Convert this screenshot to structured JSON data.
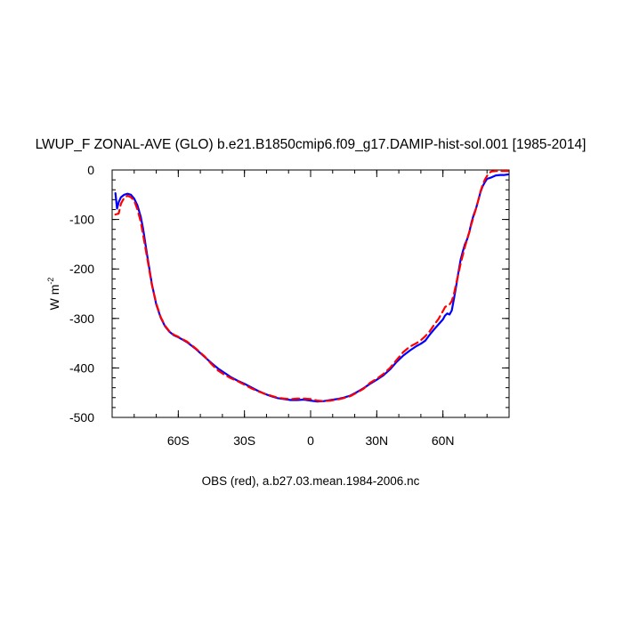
{
  "chart_data": {
    "type": "line",
    "title": "LWUP_F ZONAL-AVE (GLO) b.e21.B1850cmip6.f09_g17.DAMIP-hist-sol.001 [1985-2014]",
    "xlabel": "",
    "ylabel": "W m",
    "ylabel_superscript": "-2",
    "caption": "OBS (red), a.b27.03.mean.1984-2006.nc",
    "xlim": [
      -90,
      90
    ],
    "ylim": [
      -500,
      0
    ],
    "x_ticks": [
      {
        "value": -60,
        "label": "60S"
      },
      {
        "value": -30,
        "label": "30S"
      },
      {
        "value": 0,
        "label": "0"
      },
      {
        "value": 30,
        "label": "30N"
      },
      {
        "value": 60,
        "label": "60N"
      }
    ],
    "y_ticks": [
      {
        "value": 0,
        "label": "0"
      },
      {
        "value": -100,
        "label": "-100"
      },
      {
        "value": -200,
        "label": "-200"
      },
      {
        "value": -300,
        "label": "-300"
      },
      {
        "value": -400,
        "label": "-400"
      },
      {
        "value": -500,
        "label": "-500"
      }
    ],
    "grid": false,
    "series": [
      {
        "color": "#0000ff",
        "dash": "solid",
        "x": [
          -88.5,
          -87.8,
          -87,
          -86,
          -84.5,
          -83,
          -81.5,
          -80,
          -78.5,
          -77,
          -76,
          -74,
          -72,
          -70,
          -68,
          -66,
          -64,
          -62,
          -60,
          -58,
          -56,
          -54,
          -52,
          -50,
          -48,
          -45,
          -42,
          -39,
          -36,
          -33,
          -30,
          -27,
          -24,
          -21,
          -18,
          -15,
          -12,
          -9,
          -6,
          -3,
          0,
          3,
          6,
          9,
          12,
          15,
          18,
          21,
          24,
          27,
          30,
          33,
          36,
          39,
          42,
          45,
          48,
          50,
          52,
          54,
          56,
          58,
          60,
          61,
          62,
          63,
          64,
          65,
          66,
          67,
          68,
          69,
          70,
          71,
          72,
          73,
          74,
          75,
          76,
          77,
          78,
          79,
          80,
          82,
          84,
          86,
          88,
          89.5
        ],
        "y": [
          -47,
          -78,
          -65,
          -55,
          -50,
          -48,
          -50,
          -58,
          -72,
          -95,
          -118,
          -175,
          -230,
          -272,
          -298,
          -316,
          -327,
          -334,
          -338,
          -343,
          -348,
          -355,
          -362,
          -370,
          -378,
          -390,
          -401,
          -410,
          -419,
          -426,
          -432,
          -439,
          -446,
          -452,
          -457,
          -461,
          -463,
          -465,
          -465,
          -464,
          -466,
          -468,
          -467,
          -465,
          -463,
          -460,
          -456,
          -449,
          -441,
          -432,
          -424,
          -415,
          -403,
          -388,
          -375,
          -365,
          -356,
          -351,
          -345,
          -333,
          -322,
          -312,
          -302,
          -294,
          -290,
          -292,
          -284,
          -260,
          -235,
          -208,
          -182,
          -165,
          -150,
          -140,
          -125,
          -105,
          -90,
          -78,
          -62,
          -45,
          -33,
          -25,
          -18,
          -15,
          -11,
          -10,
          -10,
          -9
        ]
      },
      {
        "color": "#ff0000",
        "dash": "dashed",
        "x": [
          -88.5,
          -87,
          -86,
          -84.5,
          -83,
          -81.5,
          -80,
          -78.5,
          -77,
          -76,
          -74,
          -72,
          -70,
          -68,
          -66,
          -64,
          -62,
          -60,
          -58,
          -56,
          -54,
          -52,
          -50,
          -48,
          -45,
          -42,
          -39,
          -36,
          -33,
          -30,
          -27,
          -24,
          -21,
          -18,
          -15,
          -12,
          -9,
          -6,
          -3,
          0,
          3,
          6,
          9,
          12,
          15,
          18,
          21,
          24,
          27,
          30,
          33,
          36,
          39,
          42,
          45,
          48,
          50,
          52,
          54,
          56,
          58,
          60,
          61,
          62,
          63,
          64,
          65,
          66,
          67,
          68,
          69,
          70,
          71,
          72,
          73,
          74,
          75,
          76,
          77,
          78,
          79,
          80,
          81,
          82,
          84,
          86,
          88,
          89.5
        ],
        "y": [
          -90,
          -88,
          -68,
          -56,
          -52,
          -55,
          -62,
          -80,
          -105,
          -130,
          -180,
          -232,
          -270,
          -297,
          -315,
          -326,
          -333,
          -337,
          -342,
          -347,
          -354,
          -361,
          -369,
          -377,
          -392,
          -405,
          -414,
          -421,
          -427,
          -434,
          -441,
          -447,
          -452,
          -456,
          -460,
          -462,
          -463,
          -462,
          -462,
          -463,
          -466,
          -467,
          -466,
          -464,
          -461,
          -457,
          -450,
          -442,
          -430,
          -422,
          -412,
          -400,
          -384,
          -368,
          -357,
          -350,
          -344,
          -336,
          -326,
          -313,
          -301,
          -285,
          -277,
          -274,
          -272,
          -265,
          -250,
          -230,
          -210,
          -190,
          -172,
          -155,
          -140,
          -125,
          -108,
          -93,
          -78,
          -62,
          -44,
          -30,
          -20,
          -12,
          -6,
          -3,
          -2,
          -2,
          -2,
          -2
        ]
      }
    ]
  }
}
